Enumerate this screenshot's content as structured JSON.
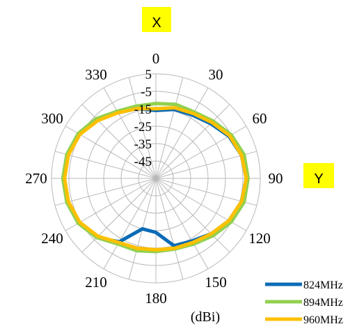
{
  "chart_data": {
    "type": "polar-line",
    "axis_tag_top": "X",
    "axis_tag_right": "Y",
    "unit_label": "(dBi)",
    "angle_labels": [
      "0",
      "30",
      "60",
      "90",
      "120",
      "150",
      "180",
      "210",
      "240",
      "270",
      "300",
      "330"
    ],
    "radial_tick_labels": [
      "5",
      "-5",
      "-15",
      "-25",
      "-35",
      "-45"
    ],
    "rlim": [
      -55,
      5
    ],
    "angle_step_deg": 15,
    "grid": true,
    "legend_position": "bottom-right",
    "angles_deg": [
      0,
      15,
      30,
      45,
      60,
      75,
      90,
      105,
      120,
      135,
      150,
      165,
      180,
      195,
      210,
      225,
      240,
      255,
      270,
      285,
      300,
      315,
      330,
      345
    ],
    "series": [
      {
        "name": "824MHz",
        "color": "#0a6bb5",
        "values": [
          -16,
          -14,
          -13,
          -10.5,
          -6.5,
          -4,
          -3,
          -4,
          -6.5,
          -10,
          -13.5,
          -15,
          -24,
          -25,
          -13,
          -7,
          -4,
          -2.5,
          -2,
          -2.5,
          -4,
          -7.5,
          -11.5,
          -13.5
        ]
      },
      {
        "name": "894MHz",
        "color": "#92d050",
        "values": [
          -12,
          -11,
          -11,
          -8.5,
          -5,
          -2.5,
          -2,
          -2.5,
          -5,
          -8.5,
          -11.5,
          -13,
          -13,
          -12,
          -11.5,
          -7,
          -3.5,
          -2,
          -1.5,
          -2,
          -3.5,
          -6.5,
          -10.5,
          -12
        ]
      },
      {
        "name": "960MHz",
        "color": "#ffc000",
        "values": [
          -15,
          -13,
          -12,
          -9.5,
          -6,
          -4,
          -3,
          -4,
          -6.5,
          -10,
          -12.5,
          -13.5,
          -14,
          -13.5,
          -12.5,
          -8,
          -4.5,
          -3,
          -2.5,
          -3,
          -4.5,
          -8,
          -11.5,
          -13.5
        ]
      }
    ]
  }
}
